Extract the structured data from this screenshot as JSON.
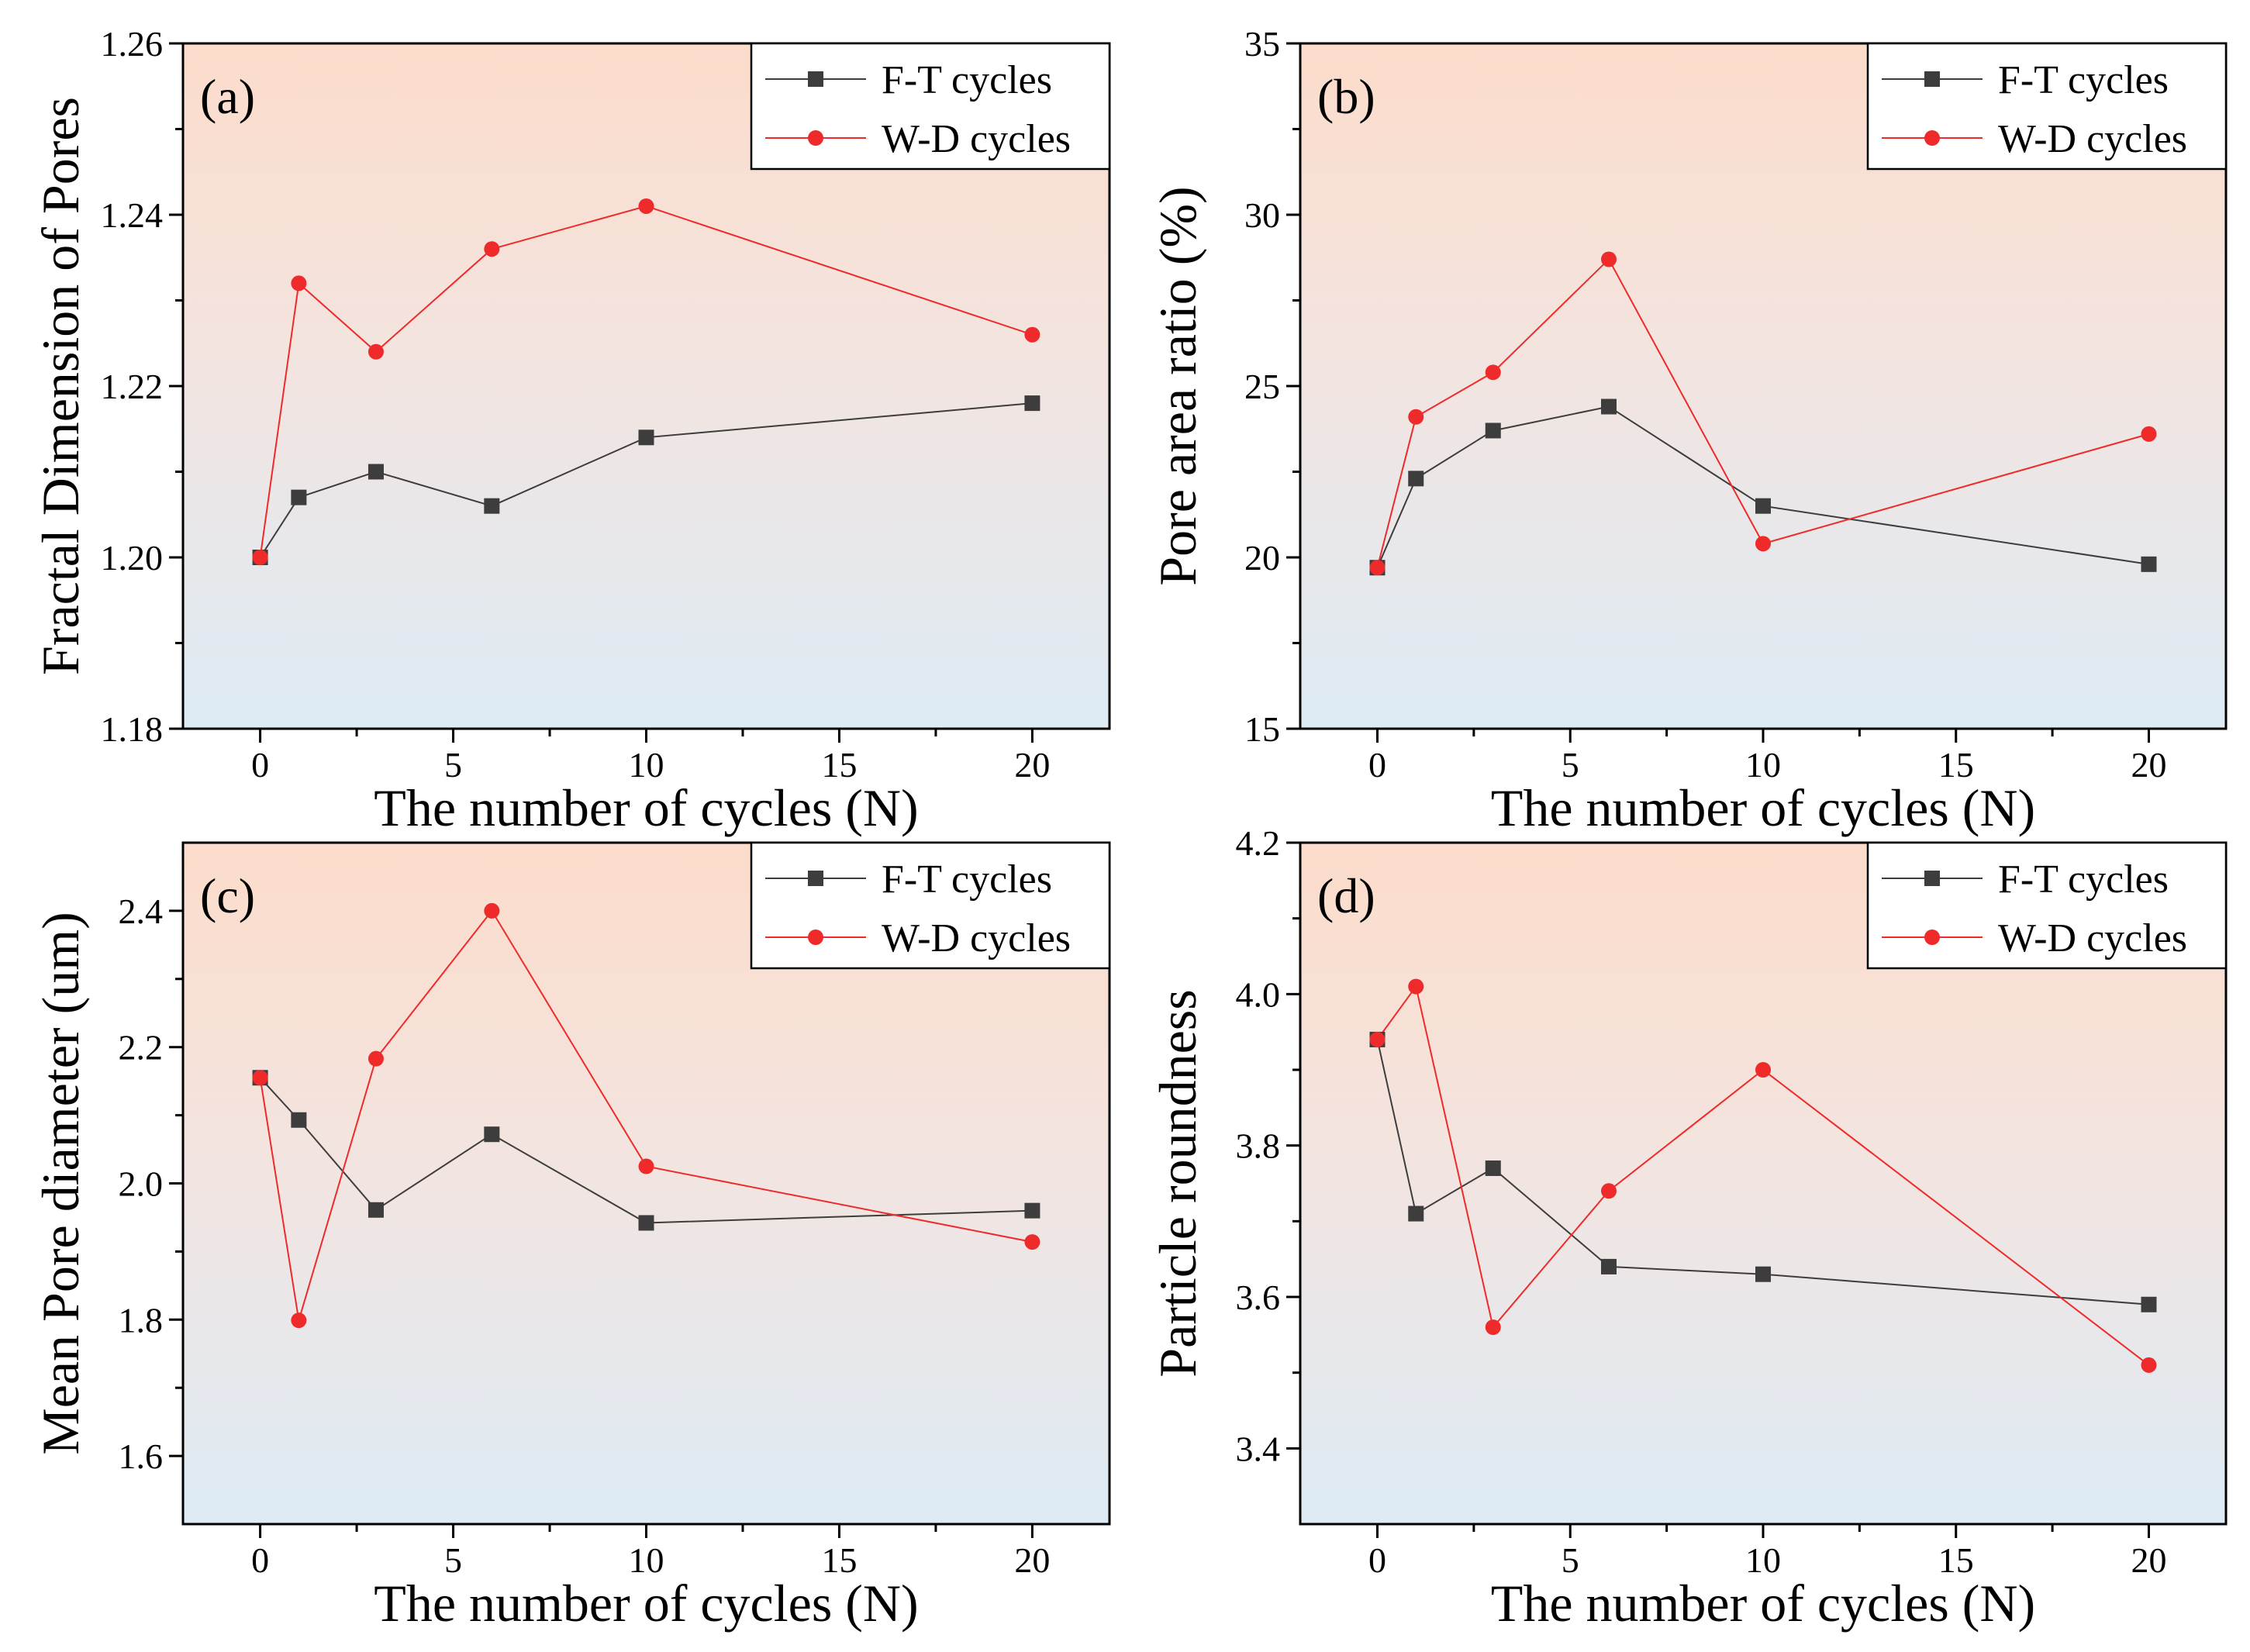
{
  "chart_data": [
    {
      "type": "line",
      "panel_label": "(a)",
      "title": "",
      "xlabel": "The number of cycles (N)",
      "ylabel": "Fractal Dimension of Pores",
      "x": [
        0,
        1,
        3,
        6,
        10,
        20
      ],
      "xlim": [
        -2,
        22
      ],
      "ylim": [
        1.18,
        1.26
      ],
      "xticks": [
        "0",
        "5",
        "10",
        "15",
        "20"
      ],
      "yticks": [
        "1.18",
        "1.20",
        "1.22",
        "1.24",
        "1.26"
      ],
      "legend_position": "top-right",
      "series": [
        {
          "name": "F-T cycles",
          "marker": "square",
          "color": "#3d3d3d",
          "values": [
            1.2,
            1.207,
            1.21,
            1.206,
            1.214,
            1.218
          ]
        },
        {
          "name": "W-D cycles",
          "marker": "circle",
          "color": "#ee2a2a",
          "values": [
            1.2,
            1.232,
            1.224,
            1.236,
            1.241,
            1.226
          ]
        }
      ]
    },
    {
      "type": "line",
      "panel_label": "(b)",
      "title": "",
      "xlabel": "The number of cycles (N)",
      "ylabel": "Pore area ratio (%)",
      "x": [
        0,
        1,
        3,
        6,
        10,
        20
      ],
      "xlim": [
        -2,
        22
      ],
      "ylim": [
        15,
        35
      ],
      "xticks": [
        "0",
        "5",
        "10",
        "15",
        "20"
      ],
      "yticks": [
        "15",
        "20",
        "25",
        "30",
        "35"
      ],
      "legend_position": "top-right",
      "series": [
        {
          "name": "F-T cycles",
          "marker": "square",
          "color": "#3d3d3d",
          "values": [
            19.7,
            22.3,
            23.7,
            24.4,
            21.5,
            19.8
          ]
        },
        {
          "name": "W-D cycles",
          "marker": "circle",
          "color": "#ee2a2a",
          "values": [
            19.7,
            24.1,
            25.4,
            28.7,
            20.4,
            23.6
          ]
        }
      ]
    },
    {
      "type": "line",
      "panel_label": "(c)",
      "title": "",
      "xlabel": "The number of cycles (N)",
      "ylabel": "Mean Pore diameter (um)",
      "x": [
        0,
        1,
        3,
        6,
        10,
        20
      ],
      "xlim": [
        -2,
        22
      ],
      "ylim": [
        1.5,
        2.5
      ],
      "xticks": [
        "0",
        "5",
        "10",
        "15",
        "20"
      ],
      "yticks": [
        "1.6",
        "1.8",
        "2.0",
        "2.2",
        "2.4"
      ],
      "legend_position": "top-right",
      "series": [
        {
          "name": "F-T cycles",
          "marker": "square",
          "color": "#3d3d3d",
          "values": [
            2.155,
            2.093,
            1.961,
            2.072,
            1.942,
            1.96
          ]
        },
        {
          "name": "W-D cycles",
          "marker": "circle",
          "color": "#ee2a2a",
          "values": [
            2.155,
            1.799,
            2.183,
            2.4,
            2.025,
            1.914
          ]
        }
      ]
    },
    {
      "type": "line",
      "panel_label": "(d)",
      "title": "",
      "xlabel": "The number of cycles (N)",
      "ylabel": "Particle roundness",
      "x": [
        0,
        1,
        3,
        6,
        10,
        20
      ],
      "xlim": [
        -2,
        22
      ],
      "ylim": [
        3.3,
        4.2
      ],
      "xticks": [
        "0",
        "5",
        "10",
        "15",
        "20"
      ],
      "yticks": [
        "3.4",
        "3.6",
        "3.8",
        "4.0",
        "4.2"
      ],
      "legend_position": "top-right",
      "series": [
        {
          "name": "F-T cycles",
          "marker": "square",
          "color": "#3d3d3d",
          "values": [
            3.94,
            3.71,
            3.77,
            3.64,
            3.63,
            3.59
          ]
        },
        {
          "name": "W-D cycles",
          "marker": "circle",
          "color": "#ee2a2a",
          "values": [
            3.94,
            4.01,
            3.56,
            3.74,
            3.9,
            3.51
          ]
        }
      ]
    }
  ]
}
